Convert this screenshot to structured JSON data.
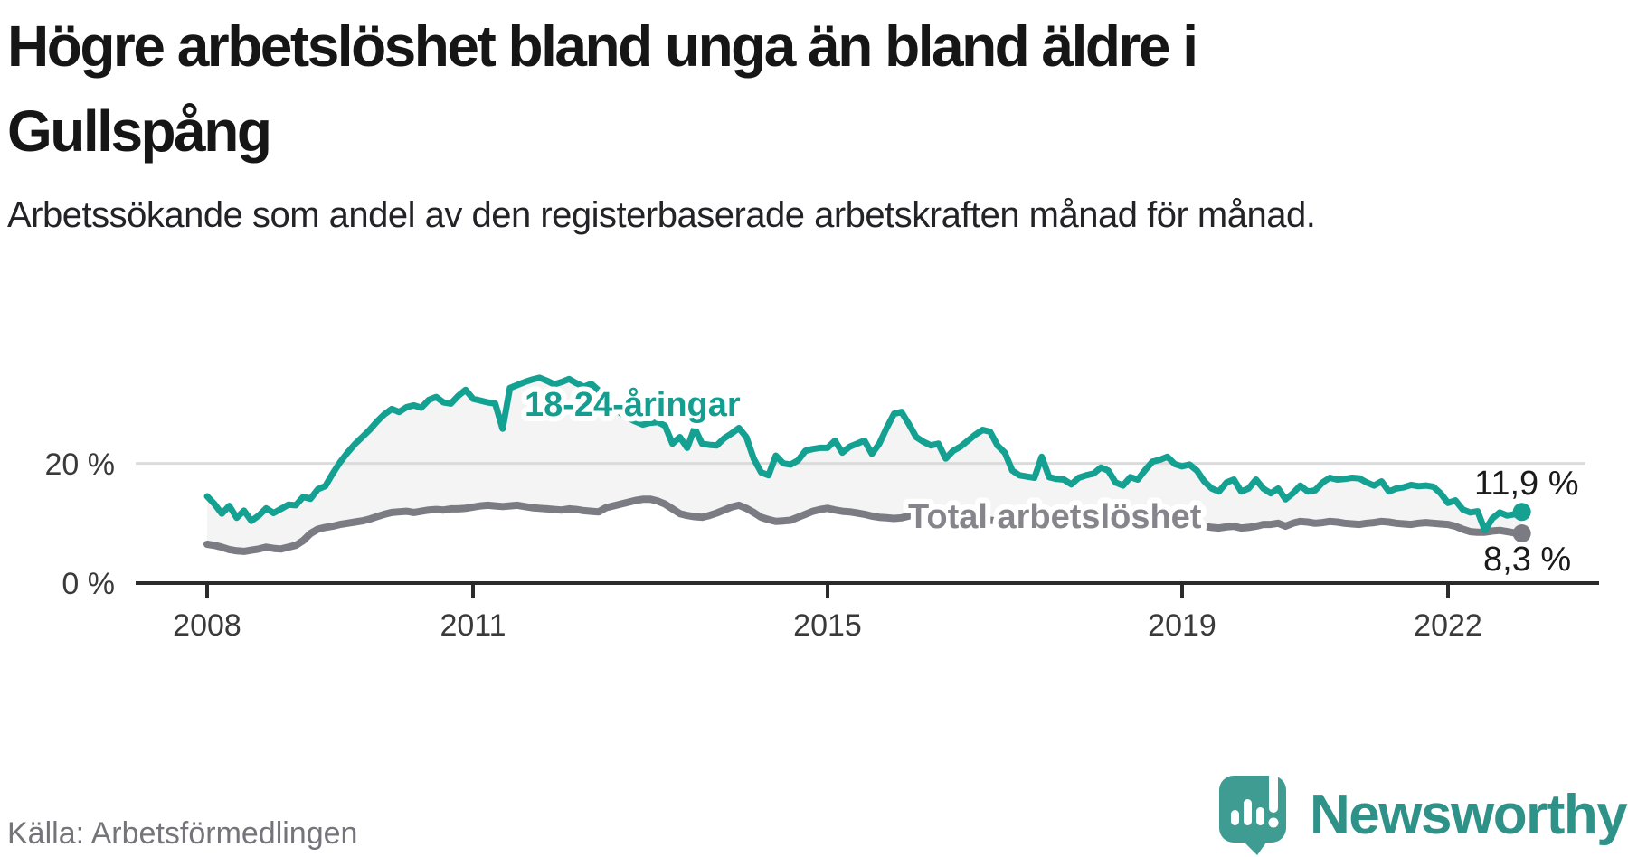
{
  "header": {
    "title": "Högre arbetslöshet bland unga än bland äldre i Gullspång",
    "subtitle": "Arbetssökande som andel av den registerbaserade arbetskraften månad för månad."
  },
  "footer": {
    "source": "Källa: Arbetsförmedlingen",
    "brand": "Newsworthy",
    "logo_icon": "speech-bubble-bar-chart-exclamation-icon"
  },
  "colors": {
    "young_line": "#14A192",
    "young_label": "#149E90",
    "total_line": "#7B7B83",
    "total_label": "#85858B",
    "band_fill": "#F4F4F4",
    "gridline": "#DBDBDB",
    "axis": "#2B2B2B",
    "tick_text": "#3A3A3A",
    "end_label_text": "#1B1B1B",
    "brand_teal": "#2F9289",
    "bubble_teal": "#3E9C92"
  },
  "chart_data": {
    "type": "line",
    "title": "Högre arbetslöshet bland unga än bland äldre i Gullspång",
    "subtitle": "Arbetssökande som andel av den registerbaserade arbetskraften månad för månad.",
    "unit": "%",
    "x_start_year": 2008,
    "x_step_months": 1,
    "x_end": "2022-11",
    "xlabel": "",
    "ylabel": "",
    "ylim": [
      0,
      43
    ],
    "grid": "single horizontal gridline at 20%",
    "legend_position": "labels drawn on lines",
    "x_ticks": [
      "2008",
      "2011",
      "2015",
      "2019",
      "2022"
    ],
    "x_tick_years": [
      2008,
      2011,
      2015,
      2019,
      2022
    ],
    "y_ticks": [
      {
        "value": 0,
        "label": "0 %"
      },
      {
        "value": 20,
        "label": "20 %"
      }
    ],
    "series": [
      {
        "name": "18-24-åringar",
        "color": "#14A192",
        "end_label": "11,9 %",
        "end_value": 11.9,
        "values": [
          14.5,
          13.2,
          11.6,
          12.9,
          10.9,
          12.1,
          10.4,
          11.3,
          12.5,
          11.7,
          12.4,
          13.1,
          13.0,
          14.4,
          14.1,
          15.7,
          16.2,
          18.3,
          20.2,
          21.8,
          23.2,
          24.4,
          25.6,
          27.0,
          28.2,
          29.1,
          28.6,
          29.4,
          29.7,
          29.3,
          30.6,
          31.1,
          30.2,
          30.0,
          31.3,
          32.3,
          30.8,
          30.5,
          30.2,
          30.0,
          25.8,
          32.6,
          33.1,
          33.6,
          34.0,
          34.3,
          33.8,
          33.2,
          33.6,
          34.1,
          33.4,
          32.8,
          33.3,
          32.2,
          30.8,
          29.6,
          28.4,
          27.6,
          27.0,
          26.5,
          26.8,
          26.9,
          26.3,
          23.3,
          24.4,
          22.6,
          25.9,
          23.3,
          23.1,
          23.0,
          24.2,
          25.0,
          25.9,
          24.4,
          20.8,
          18.5,
          18.0,
          21.3,
          20.0,
          19.8,
          20.5,
          22.1,
          22.4,
          22.6,
          22.6,
          23.8,
          21.8,
          22.8,
          23.3,
          23.8,
          21.6,
          23.3,
          25.9,
          28.3,
          28.6,
          26.6,
          24.4,
          23.6,
          23.0,
          23.3,
          20.8,
          22.1,
          22.8,
          23.8,
          24.8,
          25.6,
          25.3,
          23.0,
          21.8,
          18.8,
          18.0,
          17.8,
          17.6,
          21.1,
          17.7,
          17.4,
          17.3,
          16.5,
          17.6,
          18.0,
          18.3,
          19.3,
          18.8,
          16.8,
          16.3,
          17.7,
          17.3,
          18.9,
          20.3,
          20.6,
          21.1,
          19.9,
          19.5,
          19.8,
          18.8,
          17.0,
          15.8,
          15.3,
          16.8,
          17.3,
          15.3,
          15.8,
          17.3,
          15.8,
          15.0,
          15.8,
          14.0,
          15.0,
          16.3,
          15.3,
          15.5,
          16.8,
          17.6,
          17.3,
          17.4,
          17.6,
          17.5,
          16.8,
          16.3,
          17.0,
          15.3,
          15.8,
          16.0,
          16.4,
          16.2,
          16.3,
          16.1,
          15.0,
          13.4,
          13.8,
          12.3,
          11.8,
          12.0,
          8.8,
          10.8,
          11.8,
          11.3,
          11.5,
          11.9
        ]
      },
      {
        "name": "Total arbetslöshet",
        "color": "#7B7B83",
        "end_label": "8,3 %",
        "end_value": 8.3,
        "values": [
          6.5,
          6.3,
          6.0,
          5.6,
          5.4,
          5.3,
          5.5,
          5.7,
          6.0,
          5.8,
          5.7,
          6.0,
          6.3,
          7.1,
          8.3,
          9.0,
          9.3,
          9.5,
          9.8,
          10.0,
          10.2,
          10.4,
          10.7,
          11.1,
          11.5,
          11.8,
          11.9,
          12.0,
          11.8,
          12.0,
          12.2,
          12.3,
          12.2,
          12.4,
          12.4,
          12.5,
          12.7,
          12.9,
          13.0,
          12.9,
          12.8,
          12.9,
          13.0,
          12.8,
          12.6,
          12.5,
          12.4,
          12.3,
          12.2,
          12.4,
          12.3,
          12.1,
          12.0,
          11.9,
          12.6,
          12.9,
          13.2,
          13.5,
          13.8,
          14.0,
          14.0,
          13.7,
          13.2,
          12.4,
          11.6,
          11.3,
          11.1,
          11.0,
          11.3,
          11.7,
          12.2,
          12.7,
          13.0,
          12.5,
          11.8,
          11.0,
          10.6,
          10.3,
          10.4,
          10.5,
          11.0,
          11.5,
          12.0,
          12.3,
          12.5,
          12.2,
          12.0,
          11.9,
          11.7,
          11.5,
          11.2,
          11.0,
          10.9,
          10.8,
          10.9,
          11.2,
          11.5,
          11.3,
          11.1,
          11.0,
          10.8,
          10.7,
          10.5,
          10.4,
          10.3,
          10.4,
          10.5,
          10.4,
          10.3,
          10.2,
          10.0,
          9.9,
          9.8,
          10.0,
          9.9,
          9.7,
          9.6,
          9.5,
          9.6,
          9.7,
          9.8,
          9.9,
          9.8,
          9.6,
          9.4,
          9.5,
          9.4,
          9.6,
          9.8,
          9.9,
          10.0,
          9.9,
          9.8,
          9.9,
          9.7,
          9.5,
          9.3,
          9.2,
          9.4,
          9.5,
          9.2,
          9.3,
          9.5,
          9.8,
          9.8,
          10.0,
          9.5,
          10.0,
          10.3,
          10.2,
          10.0,
          10.1,
          10.3,
          10.2,
          10.0,
          9.9,
          9.8,
          10.0,
          10.1,
          10.3,
          10.2,
          10.0,
          9.9,
          9.8,
          10.0,
          10.1,
          10.0,
          9.9,
          9.8,
          9.5,
          9.0,
          8.6,
          8.5,
          8.5,
          8.7,
          8.8,
          8.6,
          8.4,
          8.3
        ]
      }
    ]
  }
}
